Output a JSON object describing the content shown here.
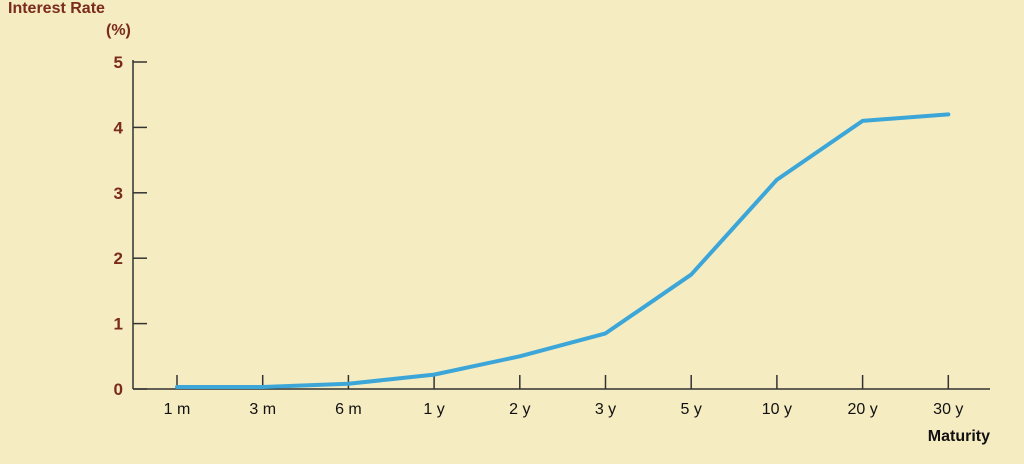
{
  "chart_data": {
    "type": "line",
    "ylabel_line1": "Interest Rate",
    "ylabel_line2": "(%)",
    "xlabel": "Maturity",
    "categories": [
      "1 m",
      "3 m",
      "6 m",
      "1 y",
      "2 y",
      "3 y",
      "5 y",
      "10 y",
      "20 y",
      "30 y"
    ],
    "values": [
      0.03,
      0.03,
      0.08,
      0.22,
      0.5,
      0.85,
      1.75,
      3.2,
      4.1,
      4.2
    ],
    "ylim": [
      0,
      5
    ],
    "yticks": [
      0,
      1,
      2,
      3,
      4,
      5
    ],
    "grid": false,
    "line_color": "#3ca6d8",
    "axis_color": "#333333"
  }
}
